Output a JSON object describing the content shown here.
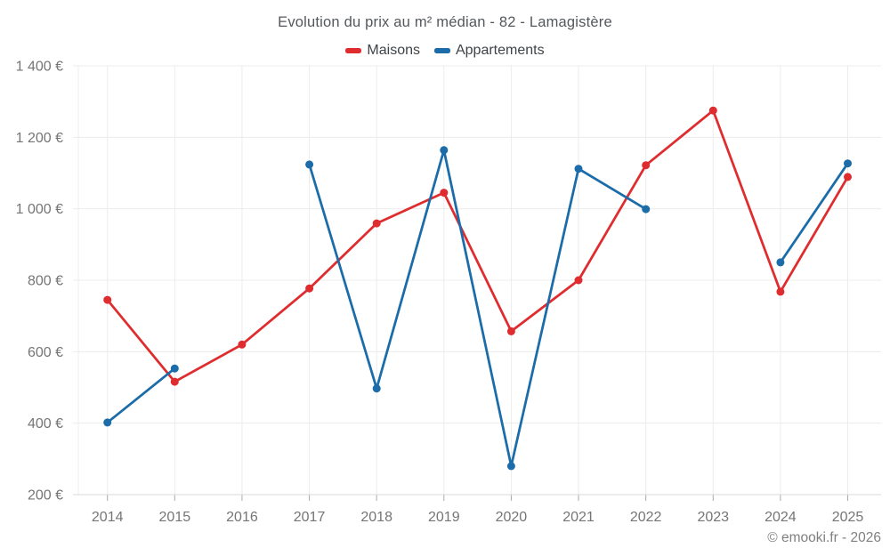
{
  "title": "Evolution du prix au m² médian - 82 - Lamagistère",
  "footer": "© emooki.fr - 2026",
  "colors": {
    "maisons": "#df2c2e",
    "appartements": "#1b6ca8",
    "grid": "#ececec",
    "axis_line": "#d8d8d8",
    "tick": "#aaaaaa",
    "axis_text": "#757575"
  },
  "chart_data": {
    "type": "line",
    "title": "Evolution du prix au m² médian - 82 - Lamagistère",
    "x": [
      "2014",
      "2015",
      "2016",
      "2017",
      "2018",
      "2019",
      "2020",
      "2021",
      "2022",
      "2023",
      "2024",
      "2025"
    ],
    "series": [
      {
        "name": "Maisons",
        "color": "#df2c2e",
        "values": [
          745,
          516,
          620,
          777,
          959,
          1045,
          657,
          800,
          1122,
          1275,
          768,
          1089
        ]
      },
      {
        "name": "Appartements",
        "color": "#1b6ca8",
        "values": [
          402,
          553,
          null,
          1124,
          497,
          1164,
          280,
          1112,
          999,
          null,
          850,
          1127
        ]
      }
    ],
    "ylim": [
      200,
      1400
    ],
    "ytick_values": [
      200,
      400,
      600,
      800,
      1000,
      1200,
      1400
    ],
    "ytick_labels": [
      "200 €",
      "400 €",
      "600 €",
      "800 €",
      "1 000 €",
      "1 200 €",
      "1 400 €"
    ],
    "grid": true,
    "legend_position": "top",
    "unit": "€"
  }
}
